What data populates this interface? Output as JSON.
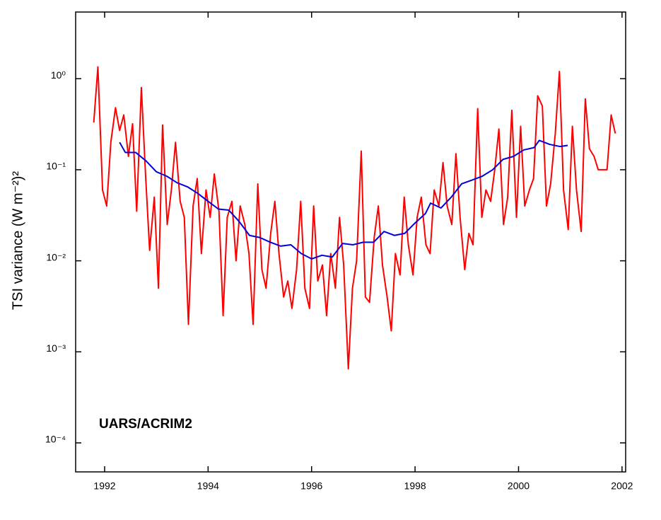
{
  "chart_data": {
    "type": "line",
    "annotation": "UARS/ACRIM2",
    "ylabel": "TSI variance (W m⁻²)²",
    "yscale": "log",
    "xlim": [
      1991.44,
      2002.07
    ],
    "ylim": [
      4.8e-05,
      5.4
    ],
    "xticks": [
      1992,
      1994,
      1996,
      1998,
      2000,
      2002
    ],
    "yticks": [
      {
        "value": 1,
        "label": "10⁰"
      },
      {
        "value": 0.1,
        "label": "10⁻¹"
      },
      {
        "value": 0.01,
        "label": "10⁻²"
      },
      {
        "value": 0.001,
        "label": "10⁻³"
      },
      {
        "value": 0.0001,
        "label": "10⁻⁴"
      }
    ],
    "series": [
      {
        "color": "#ff0000",
        "x": [
          1991.79,
          1991.87,
          1991.96,
          1992.04,
          1992.12,
          1992.21,
          1992.29,
          1992.37,
          1992.46,
          1992.54,
          1992.62,
          1992.71,
          1992.79,
          1992.87,
          1992.96,
          1993.04,
          1993.12,
          1993.21,
          1993.29,
          1993.37,
          1993.46,
          1993.54,
          1993.62,
          1993.71,
          1993.79,
          1993.87,
          1993.96,
          1994.04,
          1994.12,
          1994.21,
          1994.29,
          1994.37,
          1994.46,
          1994.54,
          1994.62,
          1994.71,
          1994.79,
          1994.87,
          1994.96,
          1995.04,
          1995.12,
          1995.21,
          1995.29,
          1995.37,
          1995.46,
          1995.54,
          1995.62,
          1995.71,
          1995.79,
          1995.87,
          1995.96,
          1996.04,
          1996.12,
          1996.21,
          1996.29,
          1996.37,
          1996.46,
          1996.54,
          1996.62,
          1996.71,
          1996.79,
          1996.87,
          1996.96,
          1997.04,
          1997.12,
          1997.21,
          1997.29,
          1997.37,
          1997.46,
          1997.54,
          1997.62,
          1997.71,
          1997.79,
          1997.87,
          1997.96,
          1998.04,
          1998.12,
          1998.21,
          1998.29,
          1998.37,
          1998.46,
          1998.54,
          1998.62,
          1998.71,
          1998.79,
          1998.87,
          1998.96,
          1999.04,
          1999.12,
          1999.21,
          1999.29,
          1999.37,
          1999.46,
          1999.54,
          1999.62,
          1999.71,
          1999.79,
          1999.87,
          1999.96,
          2000.04,
          2000.12,
          2000.21,
          2000.29,
          2000.37,
          2000.46,
          2000.54,
          2000.62,
          2000.71,
          2000.79,
          2000.87,
          2000.96,
          2001.04,
          2001.12,
          2001.21,
          2001.29,
          2001.37,
          2001.46,
          2001.54,
          2001.62,
          2001.71,
          2001.79,
          2001.87
        ],
        "values": [
          0.33,
          1.35,
          0.06,
          0.04,
          0.2,
          0.48,
          0.27,
          0.4,
          0.14,
          0.32,
          0.035,
          0.8,
          0.09,
          0.013,
          0.05,
          0.005,
          0.31,
          0.025,
          0.06,
          0.2,
          0.045,
          0.03,
          0.002,
          0.04,
          0.08,
          0.012,
          0.06,
          0.03,
          0.09,
          0.035,
          0.0025,
          0.03,
          0.045,
          0.01,
          0.04,
          0.025,
          0.012,
          0.002,
          0.07,
          0.008,
          0.005,
          0.02,
          0.045,
          0.012,
          0.004,
          0.006,
          0.003,
          0.008,
          0.045,
          0.005,
          0.003,
          0.04,
          0.006,
          0.009,
          0.0025,
          0.012,
          0.005,
          0.03,
          0.009,
          0.00065,
          0.005,
          0.01,
          0.16,
          0.004,
          0.0035,
          0.018,
          0.04,
          0.009,
          0.004,
          0.0017,
          0.012,
          0.007,
          0.05,
          0.015,
          0.007,
          0.03,
          0.05,
          0.015,
          0.012,
          0.06,
          0.04,
          0.12,
          0.04,
          0.025,
          0.15,
          0.03,
          0.008,
          0.02,
          0.015,
          0.47,
          0.03,
          0.06,
          0.045,
          0.1,
          0.28,
          0.025,
          0.05,
          0.45,
          0.03,
          0.3,
          0.04,
          0.06,
          0.08,
          0.65,
          0.5,
          0.04,
          0.07,
          0.25,
          1.2,
          0.06,
          0.022,
          0.3,
          0.06,
          0.021,
          0.6,
          0.17,
          0.14,
          0.1,
          0.1,
          0.1,
          0.4,
          0.25
        ]
      },
      {
        "color": "#0000dd",
        "x": [
          1992.29,
          1992.4,
          1992.6,
          1992.8,
          1993.0,
          1993.2,
          1993.4,
          1993.6,
          1993.8,
          1994.0,
          1994.2,
          1994.4,
          1994.6,
          1994.8,
          1995.0,
          1995.2,
          1995.4,
          1995.6,
          1995.8,
          1996.0,
          1996.2,
          1996.4,
          1996.6,
          1996.8,
          1997.0,
          1997.2,
          1997.4,
          1997.6,
          1997.8,
          1998.0,
          1998.2,
          1998.3,
          1998.5,
          1998.7,
          1998.9,
          1999.1,
          1999.3,
          1999.5,
          1999.7,
          1999.9,
          2000.1,
          2000.3,
          2000.4,
          2000.6,
          2000.8,
          2000.95
        ],
        "values": [
          0.2,
          0.155,
          0.155,
          0.125,
          0.095,
          0.085,
          0.072,
          0.065,
          0.055,
          0.045,
          0.037,
          0.036,
          0.027,
          0.019,
          0.018,
          0.016,
          0.0145,
          0.015,
          0.012,
          0.0105,
          0.0115,
          0.011,
          0.0155,
          0.015,
          0.016,
          0.016,
          0.021,
          0.019,
          0.02,
          0.026,
          0.033,
          0.043,
          0.038,
          0.05,
          0.07,
          0.077,
          0.085,
          0.1,
          0.13,
          0.14,
          0.165,
          0.175,
          0.21,
          0.19,
          0.18,
          0.185
        ]
      }
    ]
  }
}
